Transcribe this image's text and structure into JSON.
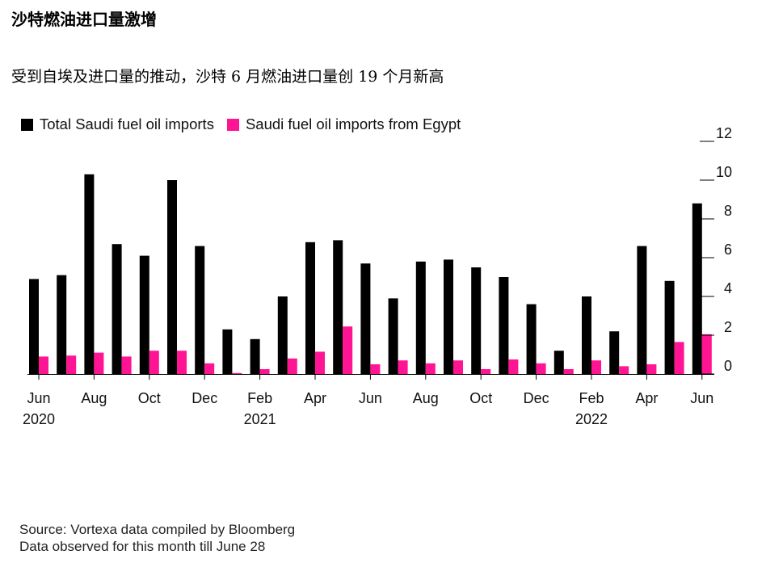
{
  "title": "沙特燃油进口量激增",
  "subtitle": "受到自埃及进口量的推动，沙特 6 月燃油进口量创 19 个月新高",
  "colors": {
    "total": "#000000",
    "egypt": "#ff1493"
  },
  "chart_data": {
    "type": "bar",
    "categories": [
      "Jun 2020",
      "Jul 2020",
      "Aug 2020",
      "Sep 2020",
      "Oct 2020",
      "Nov 2020",
      "Dec 2020",
      "Jan 2021",
      "Feb 2021",
      "Mar 2021",
      "Apr 2021",
      "May 2021",
      "Jun 2021",
      "Jul 2021",
      "Aug 2021",
      "Sep 2021",
      "Oct 2021",
      "Nov 2021",
      "Dec 2021",
      "Jan 2022",
      "Feb 2022",
      "Mar 2022",
      "Apr 2022",
      "May 2022",
      "Jun 2022"
    ],
    "series": [
      {
        "name": "Total Saudi fuel oil imports",
        "values": [
          4.9,
          5.1,
          10.3,
          6.7,
          6.1,
          10.0,
          6.6,
          2.3,
          1.8,
          4.0,
          6.8,
          6.9,
          5.7,
          3.9,
          5.8,
          5.9,
          5.5,
          5.0,
          3.6,
          1.2,
          4.0,
          2.2,
          6.6,
          4.8,
          8.8
        ]
      },
      {
        "name": "Saudi fuel oil imports from Egypt",
        "values": [
          0.9,
          0.95,
          1.1,
          0.9,
          1.2,
          1.2,
          0.55,
          0.05,
          0.25,
          0.8,
          1.15,
          2.45,
          0.5,
          0.7,
          0.55,
          0.7,
          0.25,
          0.75,
          0.55,
          0.25,
          0.7,
          0.4,
          0.5,
          1.65,
          2.05
        ]
      }
    ],
    "yticks": [
      "0",
      "2",
      "4",
      "6",
      "8",
      "10",
      "12"
    ],
    "ylim": [
      0,
      12
    ],
    "xtick_labels": [
      {
        "index": 0,
        "month": "Jun",
        "year": "2020"
      },
      {
        "index": 2,
        "month": "Aug",
        "year": ""
      },
      {
        "index": 4,
        "month": "Oct",
        "year": ""
      },
      {
        "index": 6,
        "month": "Dec",
        "year": ""
      },
      {
        "index": 8,
        "month": "Feb",
        "year": "2021"
      },
      {
        "index": 10,
        "month": "Apr",
        "year": ""
      },
      {
        "index": 12,
        "month": "Jun",
        "year": ""
      },
      {
        "index": 14,
        "month": "Aug",
        "year": ""
      },
      {
        "index": 16,
        "month": "Oct",
        "year": ""
      },
      {
        "index": 18,
        "month": "Dec",
        "year": ""
      },
      {
        "index": 20,
        "month": "Feb",
        "year": "2022"
      },
      {
        "index": 22,
        "month": "Apr",
        "year": ""
      },
      {
        "index": 24,
        "month": "Jun",
        "year": ""
      }
    ],
    "grid": false,
    "legend_position": "top-left",
    "yaxis_side": "right"
  },
  "source": {
    "line1": "Source: Vortexa data compiled by Bloomberg",
    "line2": "Data observed for this month till June 28"
  }
}
